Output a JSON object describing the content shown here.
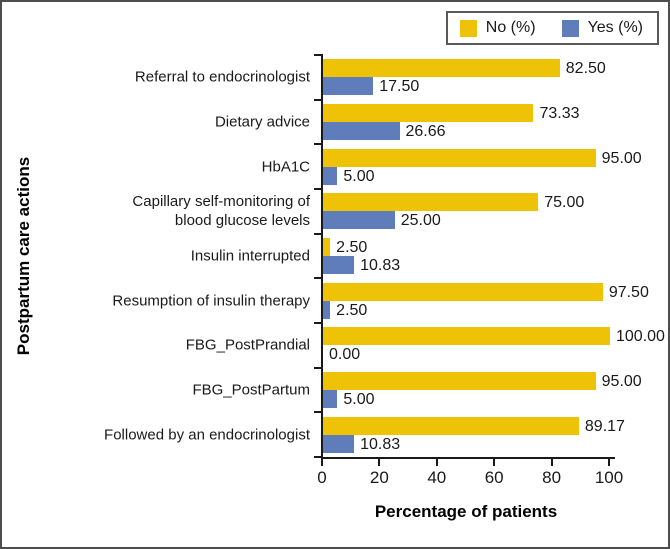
{
  "chart_data": {
    "type": "bar",
    "orientation": "horizontal",
    "title": "",
    "xlabel": "Percentage of patients",
    "ylabel": "Postpartum care actions",
    "xlim": [
      0,
      100
    ],
    "xticks": [
      0,
      20,
      40,
      60,
      80,
      100
    ],
    "grid": false,
    "legend_position": "top-right",
    "value_label_format": "2-decimals",
    "categories": [
      "Referral to endocrinologist",
      "Dietary advice",
      "HbA1C",
      "Capillary self-monitoring of\nblood glucose levels",
      "Insulin interrupted",
      "Resumption of insulin therapy",
      "FBG_PostPrandial",
      "FBG_PostPartum",
      "Followed by an endocrinologist"
    ],
    "series": [
      {
        "name": "No (%)",
        "color": "#EEC207",
        "values": [
          82.5,
          73.33,
          95.0,
          75.0,
          2.5,
          97.5,
          100.0,
          95.0,
          89.17
        ]
      },
      {
        "name": "Yes (%)",
        "color": "#5F7DBB",
        "values": [
          17.5,
          26.66,
          5.0,
          25.0,
          10.83,
          2.5,
          0.0,
          5.0,
          10.83
        ]
      }
    ],
    "colors": {
      "axis": "#1a1a1a",
      "text": "#1a1a1a",
      "figure_border": "#4d4d4d",
      "legend_border": "#595959",
      "background": "#ffffff"
    }
  }
}
